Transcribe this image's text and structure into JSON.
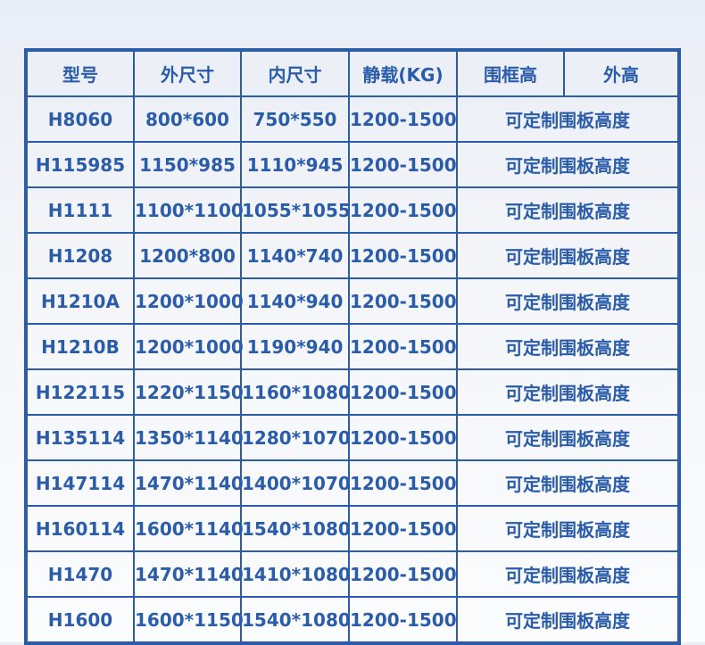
{
  "headers": [
    "型号",
    "外尺寸",
    "内尺寸",
    "静载(KG)",
    "围框高",
    "外高"
  ],
  "rows": [
    [
      "H8060",
      "800*600",
      "750*550",
      "1200-1500",
      "可定制围板高度"
    ],
    [
      "H115985",
      "1150*985",
      "1110*945",
      "1200-1500",
      "可定制围板高度"
    ],
    [
      "H1111",
      "1100*1100",
      "1055*1055",
      "1200-1500",
      "可定制围板高度"
    ],
    [
      "H1208",
      "1200*800",
      "1140*740",
      "1200-1500",
      "可定制围板高度"
    ],
    [
      "H1210A",
      "1200*1000",
      "1140*940",
      "1200-1500",
      "可定制围板高度"
    ],
    [
      "H1210B",
      "1200*1000",
      "1190*940",
      "1200-1500",
      "可定制围板高度"
    ],
    [
      "H122115",
      "1220*1150",
      "1160*1080",
      "1200-1500",
      "可定制围板高度"
    ],
    [
      "H135114",
      "1350*1140",
      "1280*1070",
      "1200-1500",
      "可定制围板高度"
    ],
    [
      "H147114",
      "1470*1140",
      "1400*1070",
      "1200-1500",
      "可定制围板高度"
    ],
    [
      "H160114",
      "1600*1140",
      "1540*1080",
      "1200-1500",
      "可定制围板高度"
    ],
    [
      "H1470",
      "1470*1140",
      "1410*1080",
      "1200-1500",
      "可定制围板高度"
    ],
    [
      "H1600",
      "1600*1150",
      "1540*1080",
      "1200-1500",
      "可定制围板高度"
    ]
  ],
  "colors": {
    "accent": "#2a5caa"
  }
}
